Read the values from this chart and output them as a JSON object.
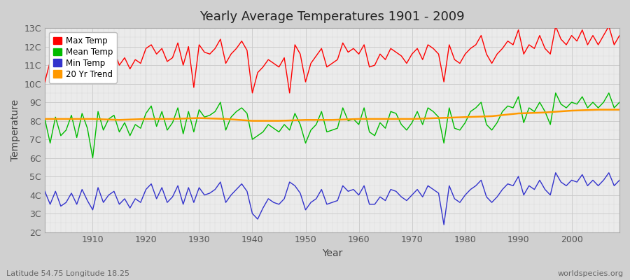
{
  "title": "Yearly Average Temperatures 1901 - 2009",
  "xlabel": "Year",
  "ylabel": "Temperature",
  "lat_lon_text": "Latitude 54.75 Longitude 18.25",
  "source_text": "worldspecies.org",
  "years": [
    1901,
    1902,
    1903,
    1904,
    1905,
    1906,
    1907,
    1908,
    1909,
    1910,
    1911,
    1912,
    1913,
    1914,
    1915,
    1916,
    1917,
    1918,
    1919,
    1920,
    1921,
    1922,
    1923,
    1924,
    1925,
    1926,
    1927,
    1928,
    1929,
    1930,
    1931,
    1932,
    1933,
    1934,
    1935,
    1936,
    1937,
    1938,
    1939,
    1940,
    1941,
    1942,
    1943,
    1944,
    1945,
    1946,
    1947,
    1948,
    1949,
    1950,
    1951,
    1952,
    1953,
    1954,
    1955,
    1956,
    1957,
    1958,
    1959,
    1960,
    1961,
    1962,
    1963,
    1964,
    1965,
    1966,
    1967,
    1968,
    1969,
    1970,
    1971,
    1972,
    1973,
    1974,
    1975,
    1976,
    1977,
    1978,
    1979,
    1980,
    1981,
    1982,
    1983,
    1984,
    1985,
    1986,
    1987,
    1988,
    1989,
    1990,
    1991,
    1992,
    1993,
    1994,
    1995,
    1996,
    1997,
    1998,
    1999,
    2000,
    2001,
    2002,
    2003,
    2004,
    2005,
    2006,
    2007,
    2008,
    2009
  ],
  "max_temp": [
    10.1,
    11.2,
    11.5,
    11.1,
    11.2,
    11.7,
    10.9,
    11.6,
    11.3,
    10.3,
    11.9,
    11.1,
    11.5,
    11.8,
    11.0,
    11.4,
    10.8,
    11.3,
    11.1,
    11.9,
    12.1,
    11.6,
    11.9,
    11.2,
    11.4,
    12.2,
    11.0,
    12.0,
    9.8,
    12.1,
    11.7,
    11.6,
    11.9,
    12.4,
    11.1,
    11.6,
    11.9,
    12.3,
    11.8,
    9.5,
    10.6,
    10.9,
    11.3,
    11.1,
    10.9,
    11.4,
    9.5,
    12.1,
    11.6,
    10.1,
    11.1,
    11.5,
    11.9,
    10.9,
    11.1,
    11.3,
    12.2,
    11.7,
    11.9,
    11.6,
    12.1,
    10.9,
    11.0,
    11.6,
    11.3,
    11.9,
    11.7,
    11.5,
    11.1,
    11.6,
    11.9,
    11.3,
    12.1,
    11.9,
    11.6,
    10.1,
    12.1,
    11.3,
    11.1,
    11.6,
    11.9,
    12.1,
    12.6,
    11.6,
    11.1,
    11.6,
    11.9,
    12.3,
    12.1,
    12.9,
    11.6,
    12.1,
    11.9,
    12.6,
    11.9,
    11.6,
    13.1,
    12.4,
    12.1,
    12.6,
    12.3,
    12.9,
    12.1,
    12.6,
    12.1,
    12.6,
    13.1,
    12.1,
    12.6
  ],
  "mean_temp": [
    8.1,
    6.8,
    8.2,
    7.2,
    7.5,
    8.3,
    7.1,
    8.4,
    7.6,
    6.0,
    8.5,
    7.5,
    8.1,
    8.3,
    7.4,
    7.9,
    7.2,
    7.8,
    7.6,
    8.4,
    8.8,
    7.7,
    8.5,
    7.5,
    7.9,
    8.7,
    7.3,
    8.5,
    7.4,
    8.6,
    8.2,
    8.3,
    8.5,
    9.0,
    7.5,
    8.2,
    8.5,
    8.7,
    8.4,
    7.0,
    7.2,
    7.4,
    7.8,
    7.6,
    7.4,
    7.8,
    7.5,
    8.4,
    7.8,
    6.8,
    7.5,
    7.8,
    8.5,
    7.4,
    7.5,
    7.6,
    8.7,
    8.0,
    8.1,
    7.8,
    8.7,
    7.4,
    7.2,
    7.9,
    7.6,
    8.5,
    8.4,
    7.8,
    7.5,
    7.9,
    8.5,
    7.8,
    8.7,
    8.5,
    8.2,
    6.8,
    8.7,
    7.6,
    7.5,
    7.9,
    8.5,
    8.7,
    9.0,
    7.8,
    7.5,
    7.9,
    8.5,
    8.8,
    8.7,
    9.3,
    7.9,
    8.7,
    8.5,
    9.0,
    8.5,
    7.8,
    9.5,
    8.9,
    8.7,
    9.0,
    8.9,
    9.3,
    8.7,
    9.0,
    8.7,
    9.0,
    9.5,
    8.7,
    9.0
  ],
  "min_temp": [
    4.2,
    3.5,
    4.2,
    3.4,
    3.6,
    4.1,
    3.5,
    4.3,
    3.7,
    3.2,
    4.4,
    3.6,
    4.0,
    4.2,
    3.5,
    3.8,
    3.3,
    3.8,
    3.6,
    4.3,
    4.6,
    3.8,
    4.4,
    3.6,
    3.9,
    4.5,
    3.5,
    4.4,
    3.6,
    4.4,
    4.0,
    4.1,
    4.3,
    4.7,
    3.6,
    4.0,
    4.3,
    4.6,
    4.2,
    3.0,
    2.7,
    3.3,
    3.8,
    3.6,
    3.5,
    3.8,
    4.7,
    4.5,
    4.1,
    3.2,
    3.6,
    3.8,
    4.3,
    3.5,
    3.6,
    3.7,
    4.5,
    4.2,
    4.3,
    4.0,
    4.5,
    3.5,
    3.5,
    3.9,
    3.7,
    4.3,
    4.2,
    3.9,
    3.7,
    4.0,
    4.3,
    3.9,
    4.5,
    4.3,
    4.1,
    2.4,
    4.5,
    3.8,
    3.6,
    4.0,
    4.3,
    4.5,
    4.8,
    3.9,
    3.6,
    3.9,
    4.3,
    4.6,
    4.5,
    5.0,
    4.0,
    4.5,
    4.3,
    4.8,
    4.3,
    4.0,
    5.2,
    4.7,
    4.5,
    4.8,
    4.7,
    5.1,
    4.5,
    4.8,
    4.5,
    4.8,
    5.2,
    4.5,
    4.8
  ],
  "trend_years": [
    1901,
    1905,
    1910,
    1915,
    1920,
    1925,
    1930,
    1935,
    1940,
    1945,
    1950,
    1955,
    1960,
    1965,
    1970,
    1975,
    1980,
    1985,
    1990,
    1995,
    2000,
    2005,
    2009
  ],
  "trend_vals": [
    8.1,
    8.1,
    8.1,
    8.05,
    8.1,
    8.1,
    8.15,
    8.1,
    8.0,
    8.0,
    8.05,
    8.05,
    8.1,
    8.1,
    8.1,
    8.15,
    8.2,
    8.25,
    8.4,
    8.45,
    8.55,
    8.6,
    8.6
  ],
  "color_max": "#ff0000",
  "color_mean": "#00bb00",
  "color_min": "#3333cc",
  "color_trend": "#ff9900",
  "color_fig_bg": "#d0d0d0",
  "color_plot_bg": "#ebebeb",
  "ylim_min": 2,
  "ylim_max": 13,
  "yticks": [
    2,
    3,
    4,
    5,
    6,
    7,
    8,
    9,
    10,
    11,
    12,
    13
  ],
  "ytick_labels": [
    "2C",
    "3C",
    "4C",
    "5C",
    "6C",
    "7C",
    "8C",
    "9C",
    "10C",
    "11C",
    "12C",
    "13C"
  ],
  "xticks": [
    1910,
    1920,
    1930,
    1940,
    1950,
    1960,
    1970,
    1980,
    1990,
    2000
  ]
}
